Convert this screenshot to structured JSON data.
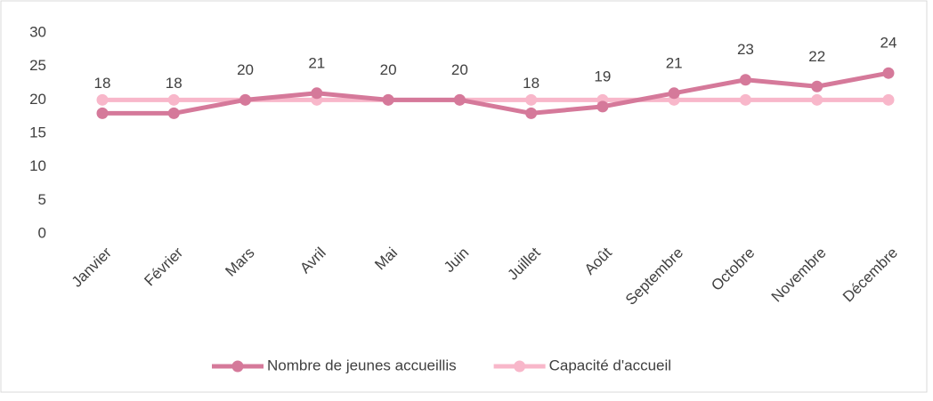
{
  "chart_data": {
    "type": "line",
    "categories": [
      "Janvier",
      "Février",
      "Mars",
      "Avril",
      "Mai",
      "Juin",
      "Juillet",
      "Août",
      "Septembre",
      "Octobre",
      "Novembre",
      "Décembre"
    ],
    "series": [
      {
        "name": "Nombre de jeunes accueillis",
        "color": "#d5799a",
        "values": [
          18,
          18,
          20,
          21,
          20,
          20,
          18,
          19,
          21,
          23,
          22,
          24
        ],
        "data_labels": true
      },
      {
        "name": "Capacité d'accueil",
        "color": "#f8b7ca",
        "values": [
          20,
          20,
          20,
          20,
          20,
          20,
          20,
          20,
          20,
          20,
          20,
          20
        ],
        "data_labels": false
      }
    ],
    "ylim": [
      0,
      30
    ],
    "yticks": [
      0,
      5,
      10,
      15,
      20,
      25,
      30
    ],
    "grid": false,
    "legend": "bottom"
  }
}
